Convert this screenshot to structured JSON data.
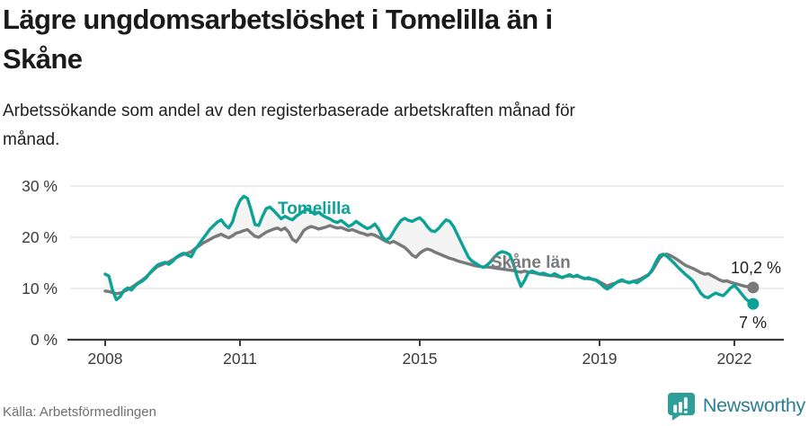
{
  "header": {
    "title": "Lägre ungdomsarbetslöshet i Tomelilla än i Skåne",
    "title_lines": [
      "Lägre ungdomsarbetslöshet i Tomelilla än i",
      "Skåne"
    ],
    "subtitle": "Arbetssökande som andel av den registerbaserade arbetskraften månad för månad.",
    "subtitle_lines": [
      "Arbetssökande som andel av den registerbaserade arbetskraften månad för",
      "månad."
    ]
  },
  "footer": {
    "source": "Källa: Arbetsförmedlingen",
    "brand": "Newsworthy"
  },
  "colors": {
    "tomelilla": "#0ca296",
    "skane": "#78797b",
    "grid": "#e6e6e6",
    "axis": "#3a3a3a",
    "area": "#f4f4f4",
    "text": "#3b3b3b",
    "brand_bubble": "#2f9e98",
    "brand_text": "#2c7e90"
  },
  "chart_data": {
    "type": "line",
    "title": "Lägre ungdomsarbetslöshet i Tomelilla än i Skåne",
    "subtitle": "Arbetssökande som andel av den registerbaserade arbetskraften månad för månad.",
    "unit": "%",
    "x_start": "2008-01",
    "x_end": "2022-06",
    "x_step": "month",
    "x_ticks": [
      2008,
      2011,
      2015,
      2019,
      2022
    ],
    "y_ticks": [
      {
        "value": 0,
        "label": "0 %"
      },
      {
        "value": 10,
        "label": "10 %"
      },
      {
        "value": 20,
        "label": "20 %"
      },
      {
        "value": 30,
        "label": "30 %"
      }
    ],
    "ylim": [
      0,
      32
    ],
    "grid": "horizontal",
    "legend_position": "inline-labels",
    "series": [
      {
        "name": "Tomelilla",
        "color": "#0ca296",
        "end_label": "7 %",
        "end_value": 7.0,
        "values": [
          12.8,
          12.4,
          9.6,
          7.8,
          8.4,
          9.6,
          10.1,
          9.7,
          10.5,
          11.1,
          11.5,
          12.1,
          13.1,
          13.9,
          14.6,
          14.9,
          15.1,
          14.7,
          15.3,
          16.1,
          16.6,
          16.9,
          16.5,
          16.2,
          17.6,
          18.6,
          19.6,
          20.6,
          21.6,
          22.3,
          23.0,
          23.4,
          22.4,
          21.8,
          23.0,
          25.5,
          27.2,
          28.0,
          27.6,
          25.2,
          22.5,
          22.3,
          24.1,
          25.6,
          25.9,
          25.2,
          24.4,
          23.6,
          24.1,
          23.7,
          23.4,
          24.1,
          24.6,
          25.1,
          25.5,
          25.0,
          24.5,
          24.9,
          24.3,
          23.9,
          23.6,
          23.1,
          22.9,
          23.3,
          22.7,
          22.1,
          22.5,
          23.1,
          22.6,
          22.1,
          21.7,
          22.0,
          22.6,
          21.6,
          20.1,
          19.4,
          19.9,
          21.1,
          22.3,
          23.3,
          23.7,
          23.3,
          23.1,
          23.5,
          23.8,
          23.1,
          22.1,
          21.3,
          21.1,
          21.7,
          22.6,
          23.4,
          23.1,
          22.1,
          20.6,
          19.1,
          17.6,
          16.1,
          15.3,
          14.9,
          14.4,
          14.1,
          14.6,
          15.3,
          16.2,
          16.9,
          17.2,
          17.0,
          16.6,
          14.8,
          12.3,
          10.4,
          11.6,
          13.1,
          13.4,
          13.1,
          12.8,
          13.0,
          12.7,
          12.5,
          12.9,
          12.5,
          12.1,
          12.4,
          12.7,
          12.3,
          12.6,
          12.2,
          11.9,
          12.1,
          11.8,
          11.6,
          11.1,
          10.4,
          9.9,
          10.3,
          10.9,
          11.4,
          11.7,
          11.3,
          11.1,
          11.4,
          11.1,
          11.6,
          12.1,
          12.6,
          13.6,
          15.1,
          16.4,
          16.7,
          16.3,
          15.6,
          14.9,
          14.1,
          13.4,
          12.7,
          12.1,
          11.4,
          10.3,
          9.1,
          8.4,
          8.2,
          8.7,
          9.1,
          8.8,
          8.6,
          9.3,
          10.1,
          10.6,
          9.8,
          8.9,
          8.0,
          7.4,
          7.0
        ]
      },
      {
        "name": "Skåne län",
        "color": "#78797b",
        "end_label": "10,2 %",
        "end_value": 10.2,
        "values": [
          9.5,
          9.4,
          9.2,
          9.0,
          9.1,
          9.4,
          9.8,
          10.2,
          10.7,
          11.2,
          11.7,
          12.3,
          13.0,
          13.7,
          14.3,
          14.6,
          14.9,
          15.2,
          15.6,
          16.0,
          16.4,
          16.7,
          16.9,
          17.2,
          17.8,
          18.3,
          18.8,
          19.2,
          19.6,
          20.0,
          20.3,
          20.6,
          20.2,
          19.9,
          20.3,
          20.8,
          21.0,
          21.3,
          21.5,
          20.8,
          20.2,
          20.0,
          20.5,
          21.0,
          21.3,
          21.6,
          21.8,
          21.4,
          21.8,
          21.0,
          19.6,
          19.1,
          20.1,
          21.3,
          21.8,
          22.1,
          21.9,
          21.6,
          21.8,
          22.0,
          22.3,
          22.0,
          21.8,
          21.9,
          21.6,
          21.3,
          21.5,
          21.2,
          20.9,
          20.7,
          20.4,
          20.6,
          20.4,
          20.0,
          19.6,
          19.2,
          18.9,
          19.2,
          18.8,
          18.4,
          18.0,
          17.3,
          16.5,
          16.1,
          16.9,
          17.4,
          17.7,
          17.5,
          17.1,
          16.8,
          16.5,
          16.2,
          15.9,
          15.7,
          15.4,
          15.2,
          15.0,
          14.8,
          14.6,
          14.4,
          14.3,
          14.2,
          14.2,
          14.1,
          14.0,
          13.9,
          13.8,
          13.7,
          13.6,
          13.5,
          13.3,
          13.2,
          13.4,
          13.2,
          13.1,
          13.0,
          12.8,
          12.7,
          12.6,
          12.5,
          12.5,
          12.3,
          12.2,
          12.4,
          12.5,
          12.3,
          12.4,
          12.2,
          12.0,
          11.9,
          11.8,
          11.7,
          11.3,
          10.9,
          10.5,
          10.8,
          11.0,
          11.3,
          11.5,
          11.3,
          11.2,
          11.4,
          11.6,
          11.9,
          12.3,
          12.7,
          13.4,
          14.6,
          15.9,
          16.6,
          16.7,
          16.4,
          16.0,
          15.5,
          15.0,
          14.5,
          14.2,
          13.9,
          13.5,
          13.1,
          12.8,
          12.9,
          12.5,
          12.1,
          11.7,
          11.4,
          11.5,
          11.2,
          11.0,
          10.8,
          10.6,
          10.4,
          10.3,
          10.2
        ]
      }
    ]
  }
}
